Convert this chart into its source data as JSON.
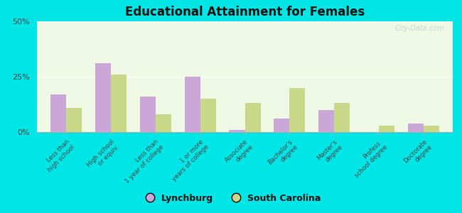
{
  "title": "Educational Attainment for Females",
  "categories": [
    "Less than\nhigh school",
    "High school\nor equiv.",
    "Less than\n1 year of college",
    "1 or more\nyears of college",
    "Associate\ndegree",
    "Bachelor's\ndegree",
    "Master's\ndegree",
    "Profess.\nschool degree",
    "Doctorate\ndegree"
  ],
  "lynchburg": [
    17,
    31,
    16,
    25,
    1,
    6,
    10,
    0,
    4
  ],
  "south_carolina": [
    11,
    26,
    8,
    15,
    13,
    20,
    13,
    3,
    3
  ],
  "lynchburg_color": "#c9a8d8",
  "sc_color": "#c8d888",
  "bg_color": "#00e5e5",
  "plot_bg": "#eef8e4",
  "ylim": [
    0,
    50
  ],
  "yticks": [
    0,
    25,
    50
  ],
  "ytick_labels": [
    "0%",
    "25%",
    "50%"
  ],
  "legend_lynchburg": "Lynchburg",
  "legend_sc": "South Carolina",
  "watermark": "City-Data.com"
}
